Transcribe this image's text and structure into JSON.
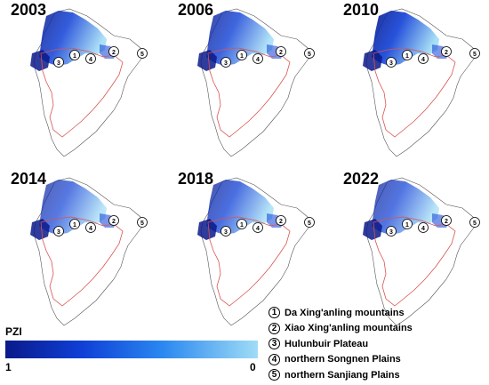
{
  "colors": {
    "dark_blue": "#0a1a8a",
    "mid_blue": "#0f3fd6",
    "light_blue": "#9fdcf6",
    "region_outline": "#d9534f",
    "province_outline": "#555555"
  },
  "maps": [
    {
      "year": "2003"
    },
    {
      "year": "2006"
    },
    {
      "year": "2010"
    },
    {
      "year": "2014"
    },
    {
      "year": "2018"
    },
    {
      "year": "2022"
    }
  ],
  "legend": {
    "title": "PZI",
    "min_label": "1",
    "max_label": "0"
  },
  "regions": [
    {
      "number": "1",
      "name": "Da Xing'anling mountains"
    },
    {
      "number": "2",
      "name": "Xiao Xing'anling mountains"
    },
    {
      "number": "3",
      "name": "Hulunbuir Plateau"
    },
    {
      "number": "4",
      "name": "northern Songnen Plains"
    },
    {
      "number": "5",
      "name": "northern Sanjiang Plains"
    }
  ]
}
